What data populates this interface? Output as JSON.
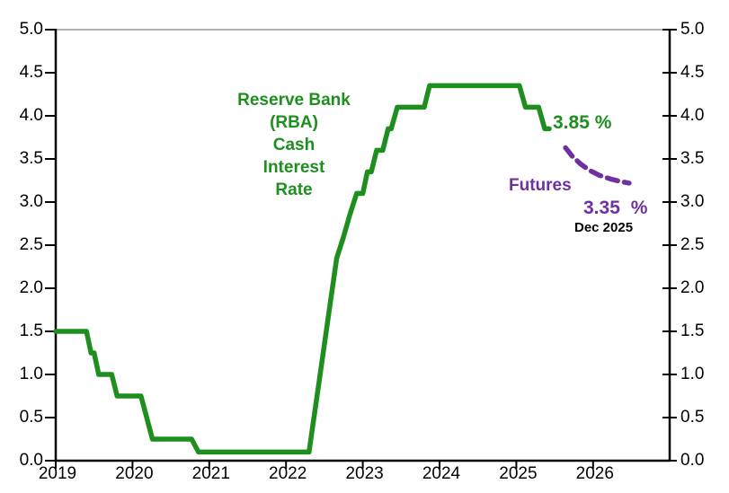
{
  "title": {
    "lines": [
      "Reserve Bank",
      "(RBA)",
      "Cash",
      "Interest",
      "Rate"
    ]
  },
  "annotations": {
    "current_rate": "3.85 %",
    "futures_label": "Futures",
    "futures_rate": "3.35 %",
    "futures_date": "Dec 2025"
  },
  "colors": {
    "rba_green": "#1e8e1e",
    "futures_purple": "#7030a0",
    "axis_black": "#000000",
    "top_border_gray": "#9a9a9a"
  },
  "chart_data": {
    "type": "line",
    "title": "Reserve Bank (RBA) Cash Interest Rate",
    "xlabel": "",
    "ylabel": "",
    "x_range": [
      2019,
      2027
    ],
    "y_range": [
      0.0,
      5.0
    ],
    "y_tick_step": 0.5,
    "grid": false,
    "legend_position": "none",
    "x_ticks": [
      "2019",
      "2020",
      "2021",
      "2022",
      "2023",
      "2024",
      "2025",
      "2026"
    ],
    "y_ticks": [
      "5.0",
      "4.5",
      "4.0",
      "3.5",
      "3.0",
      "2.5",
      "2.0",
      "1.5",
      "1.0",
      "0.5",
      "0.0"
    ],
    "series": [
      {
        "name": "RBA Cash Interest Rate",
        "color": "#1e8e1e",
        "style": "solid",
        "end_value": 3.85,
        "points": [
          [
            2019.0,
            1.5
          ],
          [
            2019.4,
            1.5
          ],
          [
            2019.46,
            1.25
          ],
          [
            2019.5,
            1.25
          ],
          [
            2019.56,
            1.0
          ],
          [
            2019.73,
            1.0
          ],
          [
            2019.8,
            0.75
          ],
          [
            2020.11,
            0.75
          ],
          [
            2020.26,
            0.25
          ],
          [
            2020.77,
            0.25
          ],
          [
            2020.86,
            0.1
          ],
          [
            2022.3,
            0.1
          ],
          [
            2022.34,
            0.35
          ],
          [
            2022.42,
            0.85
          ],
          [
            2022.5,
            1.35
          ],
          [
            2022.58,
            1.85
          ],
          [
            2022.66,
            2.35
          ],
          [
            2022.75,
            2.6
          ],
          [
            2022.83,
            2.85
          ],
          [
            2022.92,
            3.1
          ],
          [
            2023.0,
            3.1
          ],
          [
            2023.06,
            3.35
          ],
          [
            2023.11,
            3.35
          ],
          [
            2023.18,
            3.6
          ],
          [
            2023.26,
            3.6
          ],
          [
            2023.33,
            3.85
          ],
          [
            2023.37,
            3.85
          ],
          [
            2023.45,
            4.1
          ],
          [
            2023.8,
            4.1
          ],
          [
            2023.87,
            4.35
          ],
          [
            2025.04,
            4.35
          ],
          [
            2025.12,
            4.1
          ],
          [
            2025.29,
            4.1
          ],
          [
            2025.37,
            3.85
          ],
          [
            2025.43,
            3.85
          ]
        ]
      },
      {
        "name": "Futures",
        "color": "#7030a0",
        "style": "dashed",
        "end_value": 3.35,
        "end_label": "Dec 2025",
        "points": [
          [
            2025.64,
            3.63
          ],
          [
            2025.73,
            3.53
          ],
          [
            2025.84,
            3.44
          ],
          [
            2025.95,
            3.37
          ],
          [
            2026.08,
            3.31
          ],
          [
            2026.22,
            3.27
          ],
          [
            2026.35,
            3.24
          ],
          [
            2026.47,
            3.22
          ]
        ]
      }
    ]
  }
}
